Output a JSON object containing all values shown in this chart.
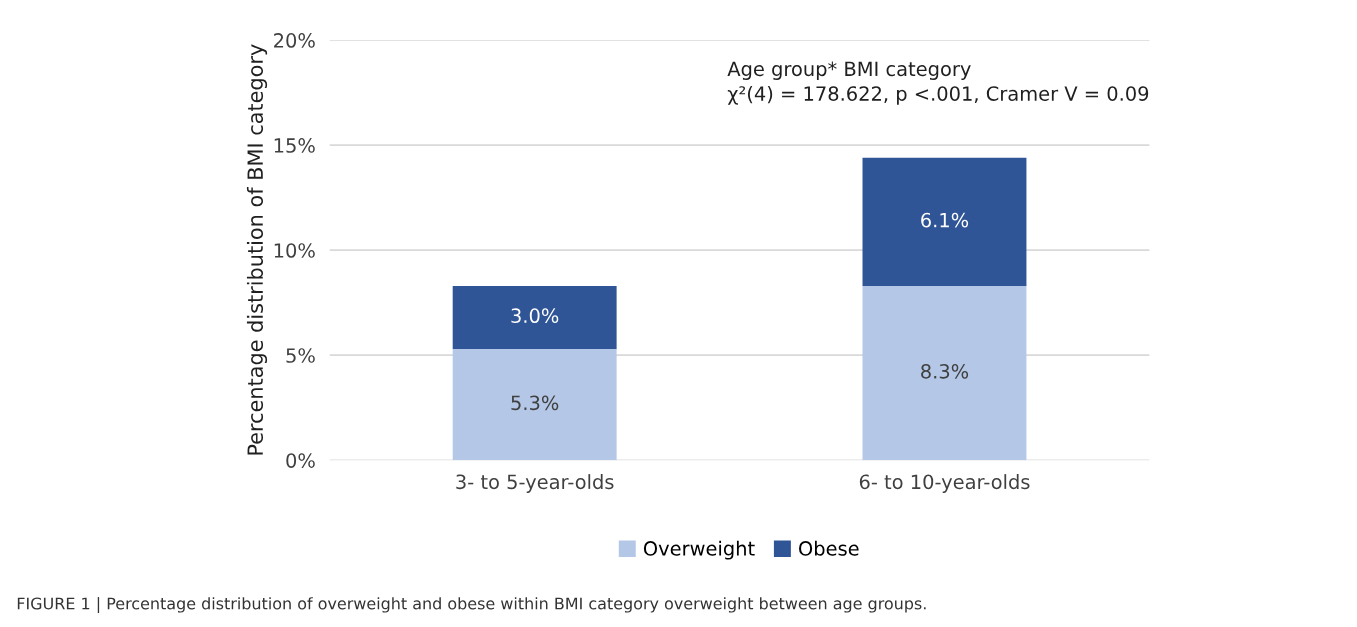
{
  "chart_data": {
    "type": "bar",
    "stacked": true,
    "ylabel": "Percentage distribution of BMI category",
    "categories": [
      "3- to 5-year-olds",
      "6- to 10-year-olds"
    ],
    "series": [
      {
        "name": "Overweight",
        "color": "#b4c7e7",
        "values": [
          5.3,
          8.3
        ],
        "value_labels": [
          "5.3%",
          "8.3%"
        ]
      },
      {
        "name": "Obese",
        "color": "#2f5597",
        "values": [
          3.0,
          6.1
        ],
        "value_labels": [
          "3.0%",
          "6.1%"
        ]
      }
    ],
    "ylim": [
      0,
      20
    ],
    "yticks": [
      {
        "value": 0,
        "label": "0%"
      },
      {
        "value": 5,
        "label": "5%"
      },
      {
        "value": 10,
        "label": "10%"
      },
      {
        "value": 15,
        "label": "15%"
      },
      {
        "value": 20,
        "label": "20%"
      }
    ],
    "grid": "y",
    "legend": "bottom",
    "annotations": [
      "Age group* BMI category\nχ²(4) = 178.622, p <.001, Cramer V = 0.09",
      "FIGURE 1 | Percentage distribution of overweight and obese within BMI category overweight between age groups."
    ]
  }
}
